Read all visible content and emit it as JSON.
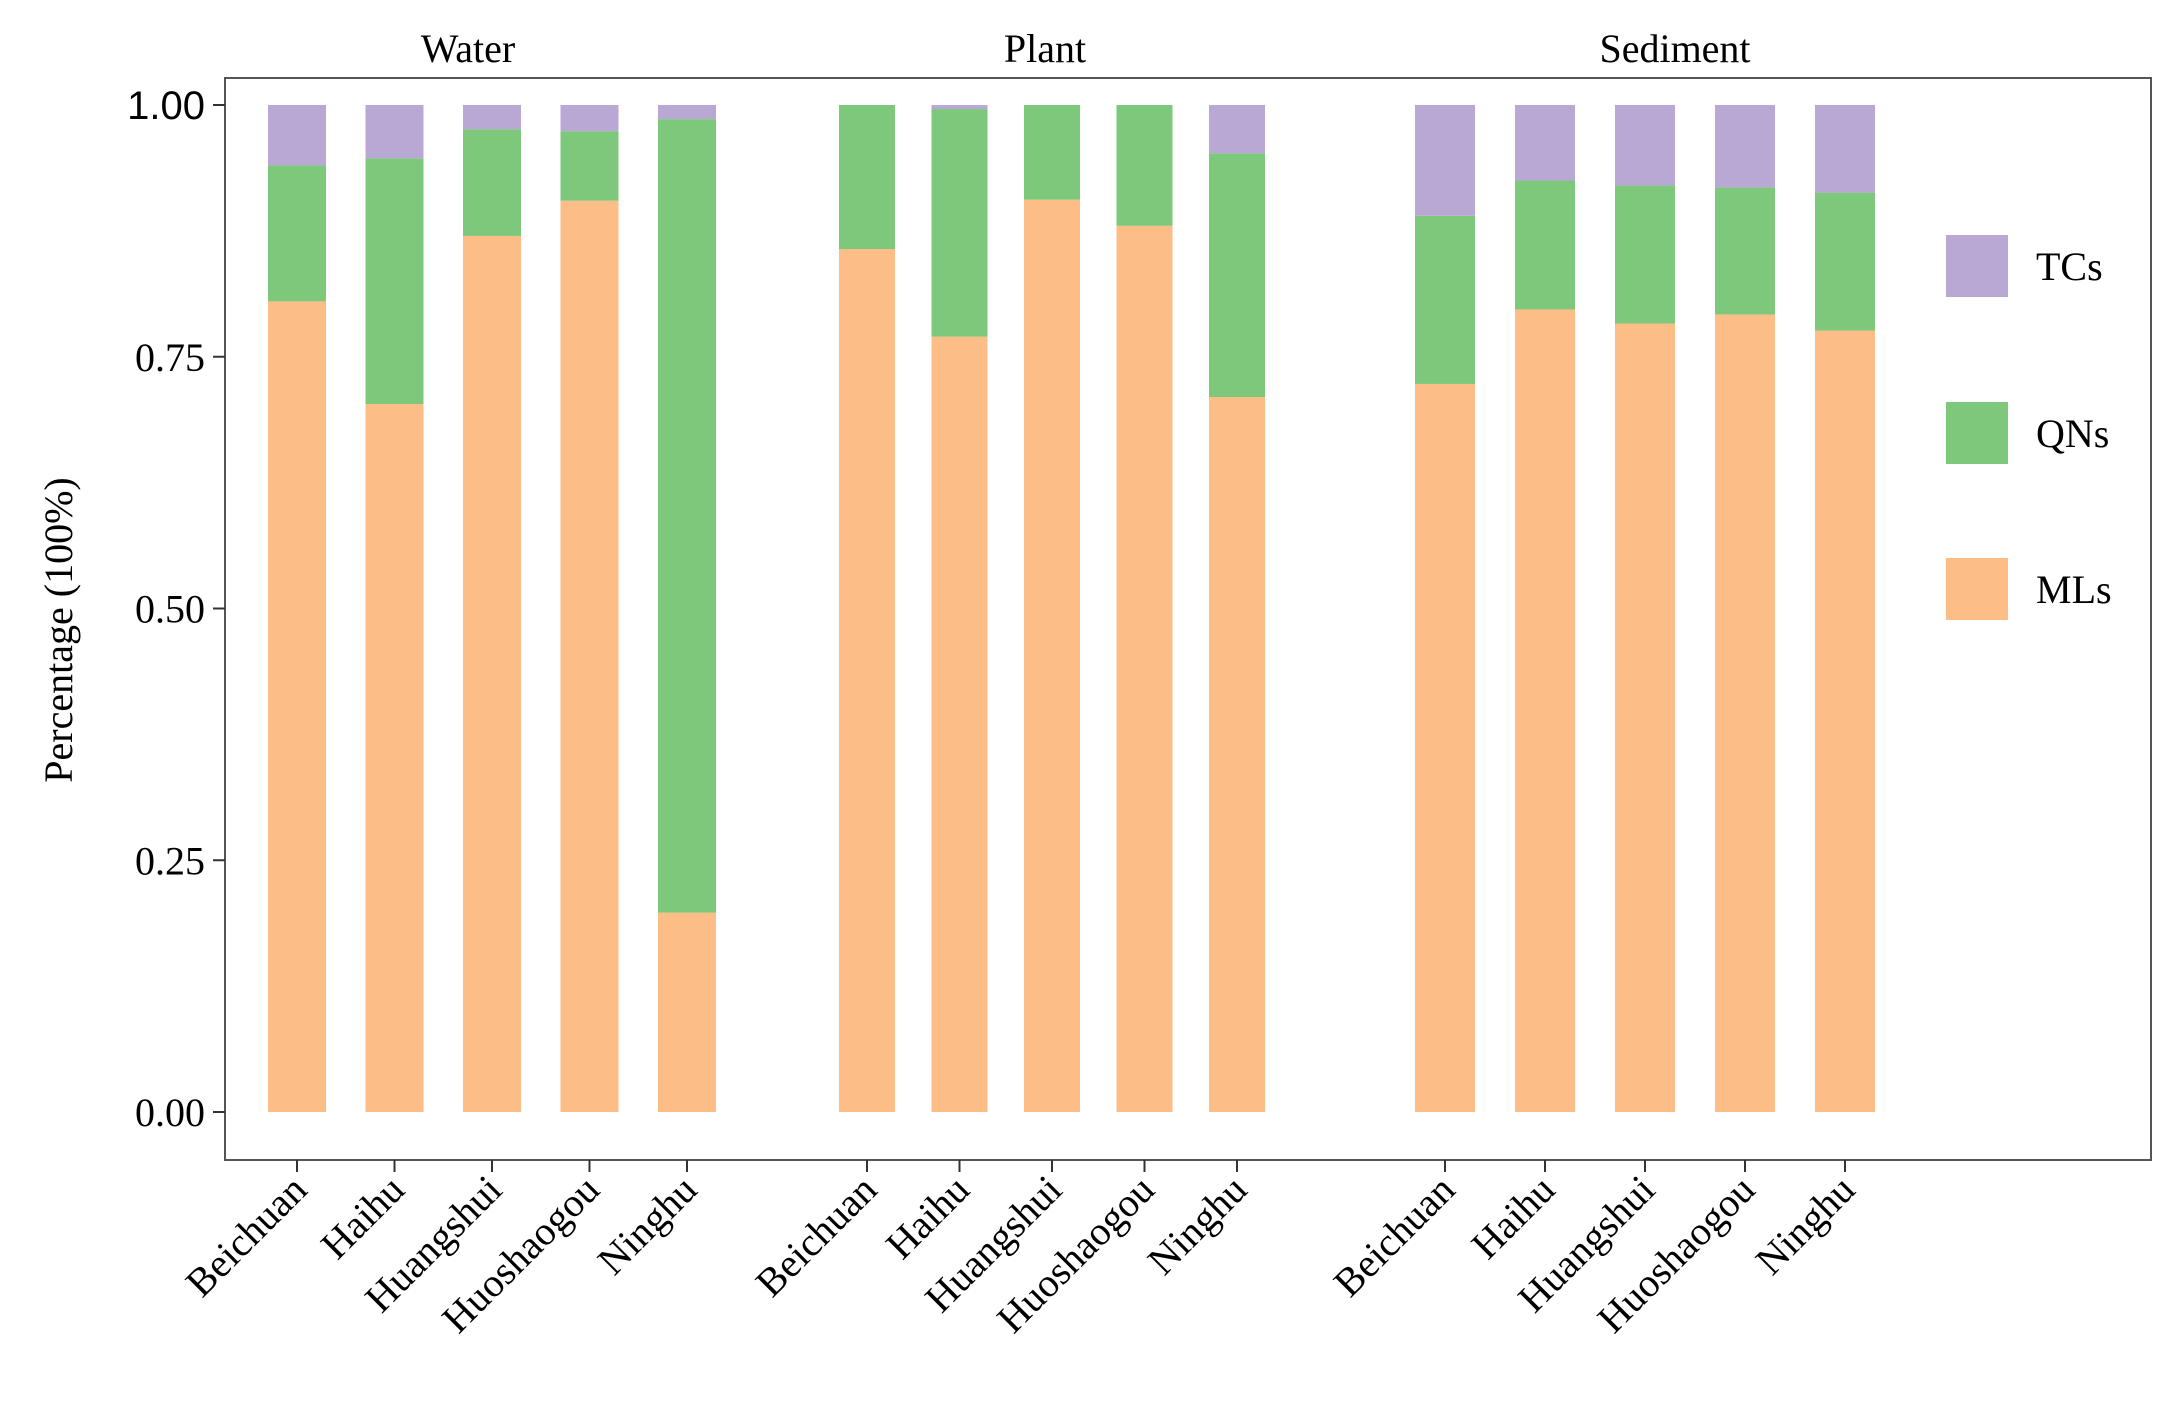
{
  "chart_data": {
    "type": "bar",
    "stacked": true,
    "ylabel": "Percentage (100%)",
    "ylim": [
      0,
      1
    ],
    "yticks": [
      "0.00",
      "0.25",
      "0.50",
      "0.75",
      "1.00"
    ],
    "ytick_values": [
      0,
      0.25,
      0.5,
      0.75,
      1.0
    ],
    "legend": [
      {
        "name": "TCs",
        "color": "#baa8d4"
      },
      {
        "name": "QNs",
        "color": "#7dc87a"
      },
      {
        "name": "MLs",
        "color": "#fcbe86"
      }
    ],
    "groups": [
      {
        "title": "Water",
        "categories": [
          "Beichuan",
          "Haihu",
          "Huangshui",
          "Huoshaogou",
          "Ninghu"
        ],
        "series": [
          {
            "name": "MLs",
            "values": [
              0.805,
              0.703,
              0.87,
              0.905,
              0.198
            ]
          },
          {
            "name": "QNs",
            "values": [
              0.135,
              0.244,
              0.106,
              0.069,
              0.788
            ]
          },
          {
            "name": "TCs",
            "values": [
              0.06,
              0.053,
              0.024,
              0.026,
              0.014
            ]
          }
        ]
      },
      {
        "title": "Plant",
        "categories": [
          "Beichuan",
          "Haihu",
          "Huangshui",
          "Huoshaogou",
          "Ninghu"
        ],
        "series": [
          {
            "name": "MLs",
            "values": [
              0.857,
              0.77,
              0.906,
              0.88,
              0.71
            ]
          },
          {
            "name": "QNs",
            "values": [
              0.143,
              0.226,
              0.094,
              0.12,
              0.242
            ]
          },
          {
            "name": "TCs",
            "values": [
              0.0,
              0.004,
              0.0,
              0.0,
              0.048
            ]
          }
        ]
      },
      {
        "title": "Sediment",
        "categories": [
          "Beichuan",
          "Haihu",
          "Huangshui",
          "Huoshaogou",
          "Ninghu"
        ],
        "series": [
          {
            "name": "MLs",
            "values": [
              0.723,
              0.797,
              0.783,
              0.792,
              0.776
            ]
          },
          {
            "name": "QNs",
            "values": [
              0.167,
              0.128,
              0.137,
              0.126,
              0.137
            ]
          },
          {
            "name": "TCs",
            "values": [
              0.11,
              0.075,
              0.08,
              0.082,
              0.087
            ]
          }
        ]
      }
    ]
  }
}
